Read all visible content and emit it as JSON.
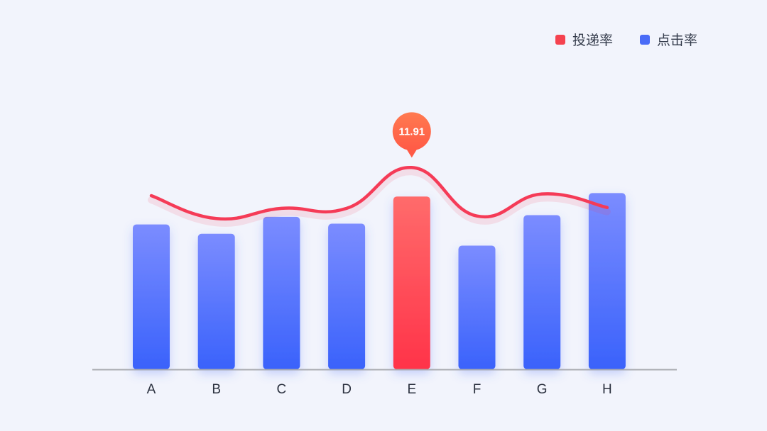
{
  "chart_data": {
    "type": "bar",
    "categories": [
      "A",
      "B",
      "C",
      "D",
      "E",
      "F",
      "G",
      "H"
    ],
    "series": [
      {
        "name": "点击率",
        "chart_type": "bar",
        "values": [
          8.55,
          8.0,
          9.0,
          8.6,
          10.2,
          7.3,
          9.1,
          10.4
        ],
        "highlight_index": 4
      },
      {
        "name": "投递率",
        "chart_type": "line",
        "values": [
          10.25,
          8.9,
          9.5,
          9.5,
          11.91,
          9.05,
          10.35,
          9.55
        ]
      }
    ],
    "callout": {
      "category": "E",
      "series": "投递率",
      "label": "11.91"
    },
    "ylim": [
      0,
      18.2
    ],
    "title": "",
    "xlabel": "",
    "ylabel": "",
    "grid": false,
    "legend_position": "top-right"
  },
  "colors": {
    "bar_top": "#7b8cff",
    "bar_bottom": "#3a62fb",
    "highlight_top": "#ff6b6b",
    "highlight_bottom": "#ff3349",
    "line": "#f53b57",
    "callout_top": "#ff7a50",
    "callout_bottom": "#ff5a46",
    "axis": "#a9abb0",
    "legend_line_swatch": "#f5424f",
    "legend_bar_swatch": "#4a6cf7"
  },
  "legend": [
    {
      "label": "投递率",
      "color_key": "legend_line_swatch"
    },
    {
      "label": "点击率",
      "color_key": "legend_bar_swatch"
    }
  ]
}
